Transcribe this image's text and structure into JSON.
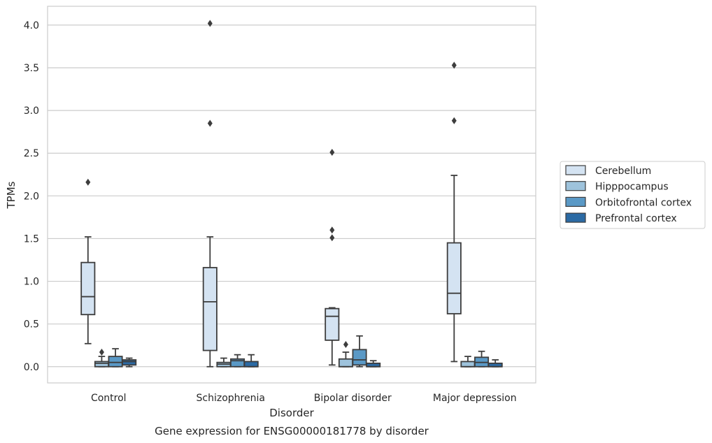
{
  "caption": "Gene expression for ENSG00000181778 by disorder",
  "chart_data": {
    "type": "box",
    "xlabel": "Disorder",
    "ylabel": "TPMs",
    "ylim": [
      -0.19,
      4.22
    ],
    "yticks": [
      "0.0",
      "0.5",
      "1.0",
      "1.5",
      "2.0",
      "2.5",
      "3.0",
      "3.5",
      "4.0"
    ],
    "ytick_values": [
      0,
      0.5,
      1.0,
      1.5,
      2.0,
      2.5,
      3.0,
      3.5,
      4.0
    ],
    "grid": "horizontal",
    "legend_position": "right",
    "categories": [
      "Control",
      "Schizophrenia",
      "Bipolar disorder",
      "Major depression"
    ],
    "series": [
      {
        "name": "Cerebellum",
        "color": "#d4e3f2",
        "boxes": [
          {
            "whislo": 0.27,
            "q1": 0.61,
            "med": 0.82,
            "q3": 1.22,
            "whishi": 1.52,
            "fliers": [
              2.16
            ]
          },
          {
            "whislo": 0.0,
            "q1": 0.19,
            "med": 0.76,
            "q3": 1.16,
            "whishi": 1.52,
            "fliers": [
              2.85,
              4.02
            ]
          },
          {
            "whislo": 0.02,
            "q1": 0.31,
            "med": 0.59,
            "q3": 0.68,
            "whishi": 0.69,
            "fliers": [
              1.51,
              1.6,
              2.51
            ]
          },
          {
            "whislo": 0.06,
            "q1": 0.62,
            "med": 0.86,
            "q3": 1.45,
            "whishi": 2.24,
            "fliers": [
              2.88,
              3.53
            ]
          }
        ]
      },
      {
        "name": "Hipppocampus",
        "color": "#9ec3dc",
        "boxes": [
          {
            "whislo": 0.0,
            "q1": 0.0,
            "med": 0.04,
            "q3": 0.06,
            "whishi": 0.12,
            "fliers": [
              0.17
            ]
          },
          {
            "whislo": 0.0,
            "q1": 0.0,
            "med": 0.03,
            "q3": 0.05,
            "whishi": 0.1,
            "fliers": []
          },
          {
            "whislo": 0.0,
            "q1": 0.0,
            "med": 0.0,
            "q3": 0.09,
            "whishi": 0.17,
            "fliers": [
              0.26
            ]
          },
          {
            "whislo": 0.0,
            "q1": 0.0,
            "med": 0.0,
            "q3": 0.06,
            "whishi": 0.12,
            "fliers": []
          }
        ]
      },
      {
        "name": "Orbitofrontal cortex",
        "color": "#5a99c6",
        "boxes": [
          {
            "whislo": 0.0,
            "q1": 0.0,
            "med": 0.05,
            "q3": 0.12,
            "whishi": 0.21,
            "fliers": []
          },
          {
            "whislo": 0.0,
            "q1": 0.0,
            "med": 0.07,
            "q3": 0.09,
            "whishi": 0.14,
            "fliers": []
          },
          {
            "whislo": 0.0,
            "q1": 0.02,
            "med": 0.08,
            "q3": 0.2,
            "whishi": 0.36,
            "fliers": []
          },
          {
            "whislo": 0.0,
            "q1": 0.0,
            "med": 0.05,
            "q3": 0.11,
            "whishi": 0.18,
            "fliers": []
          }
        ]
      },
      {
        "name": "Prefrontal cortex",
        "color": "#2b6aa4",
        "boxes": [
          {
            "whislo": 0.0,
            "q1": 0.02,
            "med": 0.06,
            "q3": 0.08,
            "whishi": 0.1,
            "fliers": []
          },
          {
            "whislo": 0.0,
            "q1": 0.0,
            "med": 0.0,
            "q3": 0.06,
            "whishi": 0.14,
            "fliers": []
          },
          {
            "whislo": 0.0,
            "q1": 0.0,
            "med": 0.0,
            "q3": 0.04,
            "whishi": 0.07,
            "fliers": []
          },
          {
            "whislo": 0.0,
            "q1": 0.0,
            "med": 0.0,
            "q3": 0.04,
            "whishi": 0.08,
            "fliers": []
          }
        ]
      }
    ]
  }
}
